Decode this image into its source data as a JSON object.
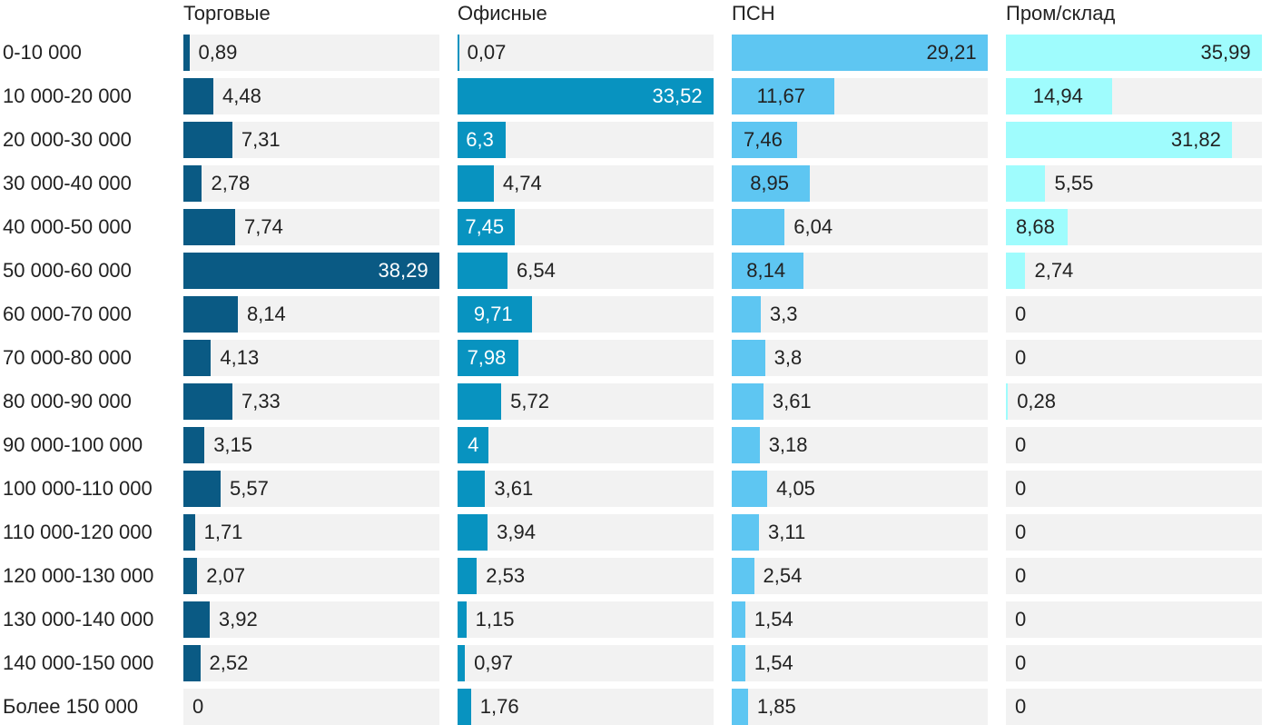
{
  "chart_data": {
    "type": "bar",
    "orientation": "horizontal",
    "layout": "small-multiples",
    "categories": [
      "0-10 000",
      "10 000-20 000",
      "20 000-30 000",
      "30 000-40 000",
      "40 000-50 000",
      "50 000-60 000",
      "60 000-70 000",
      "70 000-80 000",
      "80 000-90 000",
      "90 000-100 000",
      "100 000-110 000",
      "110 000-120 000",
      "120 000-130 000",
      "130 000-140 000",
      "140 000-150 000",
      "Более 150 000"
    ],
    "series": [
      {
        "name": "Торговые",
        "color": "#0a5a84",
        "label_color": "#ffffff",
        "values": [
          0.89,
          4.48,
          7.31,
          2.78,
          7.74,
          38.29,
          8.14,
          4.13,
          7.33,
          3.15,
          5.57,
          1.71,
          2.07,
          3.92,
          2.52,
          0
        ],
        "labels": [
          "0,89",
          "4,48",
          "7,31",
          "2,78",
          "7,74",
          "38,29",
          "8,14",
          "4,13",
          "7,33",
          "3,15",
          "5,57",
          "1,71",
          "2,07",
          "3,92",
          "2,52",
          "0"
        ]
      },
      {
        "name": "Офисные",
        "color": "#0893c0",
        "label_color": "#ffffff",
        "values": [
          0.07,
          33.52,
          6.3,
          4.74,
          7.45,
          6.54,
          9.71,
          7.98,
          5.72,
          4,
          3.61,
          3.94,
          2.53,
          1.15,
          0.97,
          1.76
        ],
        "labels": [
          "0,07",
          "33,52",
          "6,3",
          "4,74",
          "7,45",
          "6,54",
          "9,71",
          "7,98",
          "5,72",
          "4",
          "3,61",
          "3,94",
          "2,53",
          "1,15",
          "0,97",
          "1,76"
        ]
      },
      {
        "name": "ПСН",
        "color": "#5ec6f2",
        "label_color": "#222222",
        "values": [
          29.21,
          11.67,
          7.46,
          8.95,
          6.04,
          8.14,
          3.3,
          3.8,
          3.61,
          3.18,
          4.05,
          3.11,
          2.54,
          1.54,
          1.54,
          1.85
        ],
        "labels": [
          "29,21",
          "11,67",
          "7,46",
          "8,95",
          "6,04",
          "8,14",
          "3,3",
          "3,8",
          "3,61",
          "3,18",
          "4,05",
          "3,11",
          "2,54",
          "1,54",
          "1,54",
          "1,85"
        ]
      },
      {
        "name": "Пром/склад",
        "color": "#9ffcfd",
        "label_color": "#222222",
        "values": [
          35.99,
          14.94,
          31.82,
          5.55,
          8.68,
          2.74,
          0,
          0,
          0.28,
          0,
          0,
          0,
          0,
          0,
          0,
          0
        ],
        "labels": [
          "35,99",
          "14,94",
          "31,82",
          "5,55",
          "8,68",
          "2,74",
          "0",
          "0",
          "0,28",
          "0",
          "0",
          "0",
          "0",
          "0",
          "0",
          "0"
        ]
      }
    ],
    "title": "",
    "xlabel": "",
    "ylabel": "",
    "xlim_per_panel": [
      [
        0,
        38.29
      ],
      [
        0,
        33.52
      ],
      [
        0,
        29.21
      ],
      [
        0,
        35.99
      ]
    ],
    "grid": false,
    "legend": "none"
  }
}
